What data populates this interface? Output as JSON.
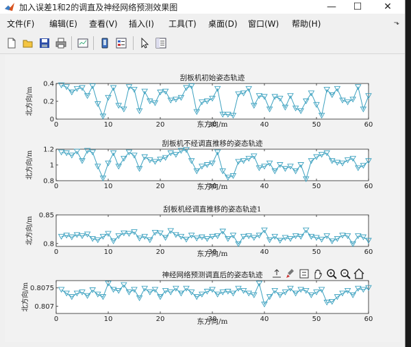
{
  "window": {
    "title": "加入误差1和2的调直及神经网络预测效果图",
    "minimize": "—",
    "maximize": "☐",
    "close": "✕"
  },
  "menu": {
    "items": [
      "文件(F)",
      "编辑(E)",
      "查看(V)",
      "插入(I)",
      "工具(T)",
      "桌面(D)",
      "窗口(W)",
      "帮助(H)"
    ],
    "overflow": "⬎"
  },
  "toolbar": {
    "icons": [
      "new-figure-icon",
      "open-file-icon",
      "save-icon",
      "print-icon",
      "print-preview-icon",
      "link-plot-icon",
      "insert-legend-icon",
      "edit-plot-arrow-icon",
      "property-editor-icon"
    ]
  },
  "figure_toolbar": {
    "icons": [
      "export-icon",
      "brush-icon",
      "data-tips-icon",
      "pan-icon",
      "zoom-in-icon",
      "zoom-out-icon",
      "home-icon"
    ]
  },
  "colors": {
    "line": "#3aa0bf",
    "axes": "#262626",
    "grid_bg": "#ffffff",
    "figure_bg": "#f2f2f2"
  },
  "chart_data": [
    {
      "type": "line",
      "title": "刮板机初始姿态轨迹",
      "xlabel": "东方向/m",
      "ylabel": "北方向/m",
      "xlim": [
        0,
        60
      ],
      "ylim": [
        0,
        0.4
      ],
      "xticks": [
        0,
        10,
        20,
        30,
        40,
        50,
        60
      ],
      "yticks": [
        "0",
        "0.2",
        "0.4"
      ],
      "marker": "down-triangle",
      "x": [
        1,
        2,
        3,
        4,
        5,
        6,
        7,
        8,
        9,
        10,
        11,
        12,
        13,
        14,
        15,
        16,
        17,
        18,
        19,
        20,
        21,
        22,
        23,
        24,
        25,
        26,
        27,
        28,
        29,
        30,
        31,
        32,
        33,
        34,
        35,
        36,
        37,
        38,
        39,
        40,
        41,
        42,
        43,
        44,
        45,
        46,
        47,
        48,
        49,
        50,
        51,
        52,
        53,
        54,
        55,
        56,
        57,
        58,
        59,
        60
      ],
      "y": [
        0.38,
        0.36,
        0.3,
        0.34,
        0.35,
        0.26,
        0.37,
        0.17,
        0.03,
        0.24,
        0.35,
        0.15,
        0.11,
        0.36,
        0.33,
        0.09,
        0.31,
        0.2,
        0.18,
        0.3,
        0.31,
        0.21,
        0.22,
        0.24,
        0.35,
        0.37,
        0.08,
        0.19,
        0.2,
        0.23,
        0.34,
        0.05,
        0.05,
        0.04,
        0.28,
        0.29,
        0.34,
        0.15,
        0.26,
        0.25,
        0.11,
        0.25,
        0.23,
        0.13,
        0.26,
        0.12,
        0.09,
        0.2,
        0.29,
        0.16,
        0.04,
        0.33,
        0.27,
        0.34,
        0.21,
        0.19,
        0.22,
        0.36,
        0.11,
        0.26
      ]
    },
    {
      "type": "line",
      "title": "刮板机不经调直推移的姿态轨迹",
      "xlabel": "东方向/m",
      "ylabel": "北方向/m",
      "xlim": [
        0,
        60
      ],
      "ylim": [
        0.8,
        1.2
      ],
      "xticks": [
        0,
        10,
        20,
        30,
        40,
        50,
        60
      ],
      "yticks": [
        "0.8",
        "1",
        "1.2"
      ],
      "marker": "down-triangle",
      "x": [
        1,
        2,
        3,
        4,
        5,
        6,
        7,
        8,
        9,
        10,
        11,
        12,
        13,
        14,
        15,
        16,
        17,
        18,
        19,
        20,
        21,
        22,
        23,
        24,
        25,
        26,
        27,
        28,
        29,
        30,
        31,
        32,
        33,
        34,
        35,
        36,
        37,
        38,
        39,
        40,
        41,
        42,
        43,
        44,
        45,
        46,
        47,
        48,
        49,
        50,
        51,
        52,
        53,
        54,
        55,
        56,
        57,
        58,
        59,
        60
      ],
      "y": [
        1.16,
        1.15,
        1.12,
        1.17,
        1.05,
        1.18,
        1.16,
        0.98,
        0.83,
        1.02,
        1.15,
        0.98,
        1.08,
        1.16,
        1.12,
        0.95,
        1.1,
        1.06,
        1.04,
        1.07,
        1.09,
        1.15,
        1.13,
        1.18,
        1.19,
        1.05,
        0.92,
        0.98,
        1.0,
        1.02,
        1.16,
        0.92,
        0.84,
        0.86,
        1.04,
        1.05,
        1.08,
        1.11,
        0.96,
        0.98,
        1.02,
        0.92,
        1.0,
        0.95,
        0.98,
        0.92,
        1.0,
        0.82,
        1.05,
        1.1,
        1.13,
        1.15,
        1.05,
        1.03,
        1.02,
        1.06,
        1.08,
        0.96,
        0.99,
        1.05
      ]
    },
    {
      "type": "line",
      "title": "刮板机经调直推移的姿态轨迹1",
      "xlabel": "东方向/m",
      "ylabel": "北方向/m",
      "xlim": [
        0,
        60
      ],
      "ylim": [
        0.795,
        0.85
      ],
      "xticks": [
        0,
        10,
        20,
        30,
        40,
        50,
        60
      ],
      "yticks": [
        "0.8",
        "0.85"
      ],
      "marker": "down-triangle",
      "x": [
        1,
        2,
        3,
        4,
        5,
        6,
        7,
        8,
        9,
        10,
        11,
        12,
        13,
        14,
        15,
        16,
        17,
        18,
        19,
        20,
        21,
        22,
        23,
        24,
        25,
        26,
        27,
        28,
        29,
        30,
        31,
        32,
        33,
        34,
        35,
        36,
        37,
        38,
        39,
        40,
        41,
        42,
        43,
        44,
        45,
        46,
        47,
        48,
        49,
        50,
        51,
        52,
        53,
        54,
        55,
        56,
        57,
        58,
        59,
        60
      ],
      "y": [
        0.812,
        0.814,
        0.811,
        0.815,
        0.813,
        0.816,
        0.808,
        0.806,
        0.812,
        0.817,
        0.804,
        0.813,
        0.818,
        0.817,
        0.82,
        0.809,
        0.812,
        0.806,
        0.819,
        0.818,
        0.81,
        0.822,
        0.815,
        0.812,
        0.807,
        0.814,
        0.809,
        0.811,
        0.808,
        0.812,
        0.813,
        0.821,
        0.808,
        0.814,
        0.799,
        0.812,
        0.813,
        0.81,
        0.814,
        0.823,
        0.806,
        0.812,
        0.805,
        0.81,
        0.808,
        0.813,
        0.812,
        0.823,
        0.812,
        0.81,
        0.807,
        0.813,
        0.804,
        0.808,
        0.814,
        0.813,
        0.799,
        0.813,
        0.811,
        0.805
      ]
    },
    {
      "type": "line",
      "title": "神经网络预测调直后的姿态轨迹",
      "xlabel": "东方向/m",
      "ylabel": "北方向/m",
      "xlim": [
        0,
        60
      ],
      "ylim": [
        0.8068,
        0.8077
      ],
      "xticks": [
        0,
        10,
        20,
        30,
        40,
        50,
        60
      ],
      "yticks": [
        "0.807",
        "0.8075"
      ],
      "marker": "down-triangle",
      "x": [
        1,
        2,
        3,
        4,
        5,
        6,
        7,
        8,
        9,
        10,
        11,
        12,
        13,
        14,
        15,
        16,
        17,
        18,
        19,
        20,
        21,
        22,
        23,
        24,
        25,
        26,
        27,
        28,
        29,
        30,
        31,
        32,
        33,
        34,
        35,
        36,
        37,
        38,
        39,
        40,
        41,
        42,
        43,
        44,
        45,
        46,
        47,
        48,
        49,
        50,
        51,
        52,
        53,
        54,
        55,
        56,
        57,
        58,
        59,
        60
      ],
      "y": [
        0.80745,
        0.80735,
        0.80725,
        0.80735,
        0.80738,
        0.80728,
        0.80744,
        0.80732,
        0.80725,
        0.80762,
        0.80745,
        0.80742,
        0.80758,
        0.80738,
        0.80745,
        0.80722,
        0.80748,
        0.80738,
        0.80745,
        0.80725,
        0.80742,
        0.80738,
        0.80748,
        0.80735,
        0.80748,
        0.80738,
        0.80725,
        0.80732,
        0.8074,
        0.80745,
        0.80732,
        0.80738,
        0.8074,
        0.80735,
        0.80748,
        0.80742,
        0.80735,
        0.8073,
        0.80762,
        0.80705,
        0.80725,
        0.80742,
        0.8073,
        0.80738,
        0.80748,
        0.80735,
        0.80745,
        0.80742,
        0.8073,
        0.80738,
        0.80745,
        0.8071,
        0.80712,
        0.80725,
        0.80735,
        0.80742,
        0.8073,
        0.80748,
        0.80745,
        0.8075
      ]
    }
  ]
}
